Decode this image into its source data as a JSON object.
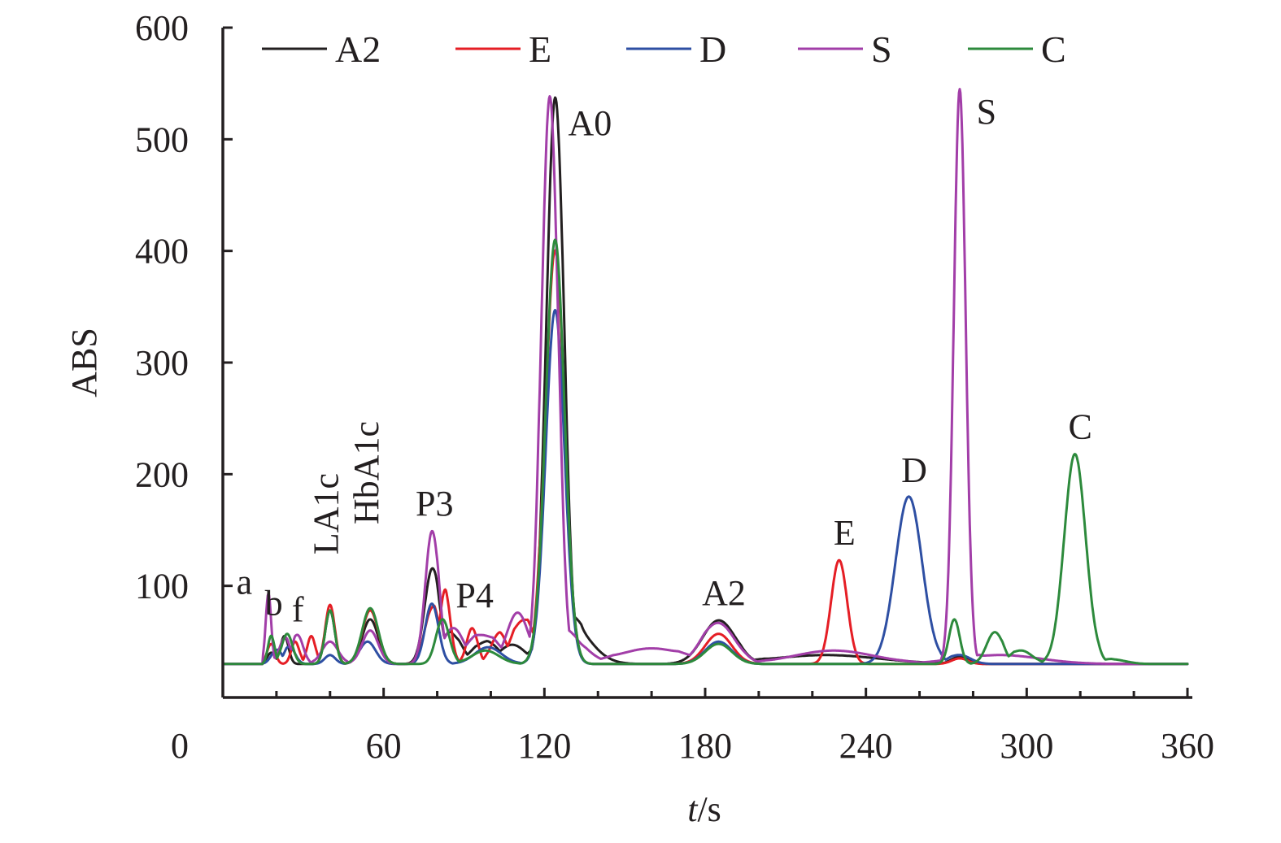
{
  "chart_data": {
    "type": "line",
    "xlabel_italic": "t",
    "xlabel_rest": "/s",
    "ylabel": "ABS",
    "xlim": [
      0,
      360
    ],
    "ylim": [
      0,
      600
    ],
    "baseline": 30,
    "x_ticks": [
      0,
      60,
      120,
      180,
      240,
      300,
      360
    ],
    "y_ticks": [
      100,
      200,
      300,
      400,
      500,
      600
    ],
    "grid": false,
    "legend_position": "top",
    "series": [
      {
        "name": "A2",
        "color": "#231f20",
        "peaks": [
          [
            18,
            40,
            1.5
          ],
          [
            23,
            55,
            1.5
          ],
          [
            40,
            78,
            1.8
          ],
          [
            55,
            70,
            3
          ],
          [
            78,
            110,
            2.8
          ],
          [
            85,
            55,
            4
          ],
          [
            98,
            48,
            5
          ],
          [
            108,
            45,
            5
          ],
          [
            124,
            502,
            3.2
          ],
          [
            128,
            70,
            8
          ],
          [
            185,
            68,
            6
          ],
          [
            225,
            38,
            20
          ],
          [
            275,
            36,
            3
          ]
        ]
      },
      {
        "name": "E",
        "color": "#e51e25",
        "peaks": [
          [
            18,
            48,
            1.5
          ],
          [
            27,
            50,
            1.5
          ],
          [
            33,
            55,
            1.5
          ],
          [
            40,
            83,
            1.8
          ],
          [
            55,
            78,
            3
          ],
          [
            78,
            78,
            2.8
          ],
          [
            83,
            88,
            2
          ],
          [
            93,
            62,
            2
          ],
          [
            103,
            55,
            3
          ],
          [
            112,
            68,
            4
          ],
          [
            124,
            400,
            3.5
          ],
          [
            185,
            57,
            5
          ],
          [
            230,
            123,
            3
          ],
          [
            275,
            35,
            3
          ]
        ]
      },
      {
        "name": "D",
        "color": "#2e4fa3",
        "peaks": [
          [
            20,
            42,
            2
          ],
          [
            25,
            45,
            2
          ],
          [
            40,
            38,
            2
          ],
          [
            54,
            50,
            3
          ],
          [
            78,
            84,
            2.5
          ],
          [
            99,
            45,
            5
          ],
          [
            124,
            347,
            3.5
          ],
          [
            185,
            50,
            5
          ],
          [
            256,
            180,
            5
          ],
          [
            275,
            38,
            4
          ]
        ]
      },
      {
        "name": "S",
        "color": "#a23ea8",
        "peaks": [
          [
            17,
            93,
            1.0
          ],
          [
            23,
            52,
            2
          ],
          [
            28,
            55,
            2
          ],
          [
            40,
            50,
            3
          ],
          [
            55,
            60,
            3
          ],
          [
            78,
            145,
            2.5
          ],
          [
            86,
            58,
            4
          ],
          [
            97,
            55,
            6
          ],
          [
            110,
            70,
            4
          ],
          [
            122,
            510,
            3
          ],
          [
            125,
            60,
            8
          ],
          [
            160,
            44,
            12
          ],
          [
            185,
            65,
            6
          ],
          [
            228,
            42,
            15
          ],
          [
            275,
            540,
            2.2
          ],
          [
            290,
            38,
            15
          ]
        ]
      },
      {
        "name": "C",
        "color": "#2d8a3c",
        "peaks": [
          [
            18,
            55,
            1.2
          ],
          [
            24,
            57,
            2
          ],
          [
            40,
            78,
            1.8
          ],
          [
            55,
            80,
            3
          ],
          [
            82,
            70,
            2.5
          ],
          [
            98,
            42,
            5
          ],
          [
            124,
            410,
            3.5
          ],
          [
            185,
            48,
            5
          ],
          [
            273,
            70,
            2
          ],
          [
            288,
            58,
            3
          ],
          [
            298,
            42,
            4
          ],
          [
            318,
            218,
            4
          ],
          [
            332,
            34,
            5
          ]
        ]
      }
    ],
    "peak_labels": [
      {
        "text": "a",
        "x": 8,
        "y": 93
      },
      {
        "text": "b",
        "x": 19,
        "y": 74
      },
      {
        "text": "f",
        "x": 28,
        "y": 68
      },
      {
        "text": "LA1c",
        "x": 43,
        "y": 128,
        "rotate": true
      },
      {
        "text": "HbA1c",
        "x": 58,
        "y": 155,
        "rotate": true
      },
      {
        "text": "P3",
        "x": 79,
        "y": 163
      },
      {
        "text": "P4",
        "x": 94,
        "y": 81
      },
      {
        "text": "A0",
        "x": 137,
        "y": 504
      },
      {
        "text": "A2",
        "x": 187,
        "y": 83
      },
      {
        "text": "E",
        "x": 232,
        "y": 137
      },
      {
        "text": "D",
        "x": 258,
        "y": 193
      },
      {
        "text": "S",
        "x": 285,
        "y": 514
      },
      {
        "text": "C",
        "x": 320,
        "y": 232
      }
    ]
  }
}
